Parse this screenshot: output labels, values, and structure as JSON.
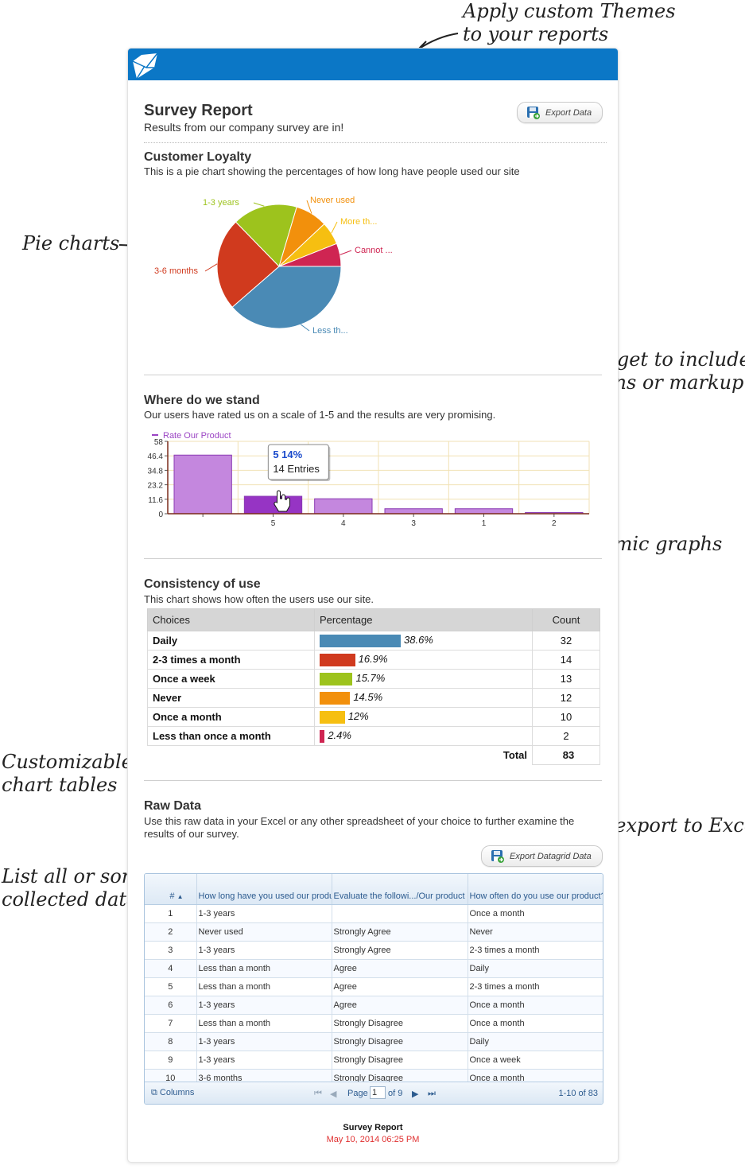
{
  "annotations": {
    "themes": [
      "Apply custom Themes",
      "to your reports"
    ],
    "pie": "Pie charts",
    "text_widget": [
      "Add a text widget to include",
      "any descriptions or markup"
    ],
    "graphs": "Dynamic graphs",
    "tables": [
      "Customizable",
      "chart tables"
    ],
    "export": "Allow export to Excel",
    "list": [
      "List all or some",
      "collected data"
    ]
  },
  "report": {
    "title": "Survey Report",
    "subtitle": "Results from our company survey are in!",
    "export_label": "Export Data"
  },
  "loyalty": {
    "heading": "Customer Loyalty",
    "description": "This is a pie chart showing the percentages of how long have people used our site",
    "chart_data": {
      "type": "pie",
      "slices": [
        {
          "label": "Less th...",
          "value": 38.6,
          "color": "#4a8ab5"
        },
        {
          "label": "3-6 months",
          "value": 24.1,
          "color": "#d03a1e"
        },
        {
          "label": "1-3 years",
          "value": 16.9,
          "color": "#9dc31d"
        },
        {
          "label": "Never used",
          "value": 8.4,
          "color": "#f2900c"
        },
        {
          "label": "More th...",
          "value": 6.0,
          "color": "#f6bf11"
        },
        {
          "label": "Cannot ...",
          "value": 6.0,
          "color": "#cf2552"
        }
      ]
    }
  },
  "stand": {
    "heading": "Where do we stand",
    "description": "Our users have rated us on a scale of 1-5 and the results are very promising.",
    "chart_data": {
      "type": "bar",
      "legend": "Rate Our Product",
      "categories": [
        "",
        "5",
        "4",
        "3",
        "1",
        "2"
      ],
      "values": [
        47,
        14,
        12,
        4,
        4,
        1
      ],
      "yticks": [
        "58",
        "46.4",
        "34.8",
        "23.2",
        "11.6",
        "0"
      ],
      "ylim": [
        0,
        58
      ],
      "tooltip": {
        "title": "5 14%",
        "body": "14 Entries"
      }
    }
  },
  "consistency": {
    "heading": "Consistency of use",
    "description": "This chart shows how often the users use our site.",
    "headers": [
      "Choices",
      "Percentage",
      "Count"
    ],
    "rows": [
      {
        "choice": "Daily",
        "pct": "38.6%",
        "value": 38.6,
        "count": "32",
        "color": "#4a8ab5"
      },
      {
        "choice": "2-3 times a month",
        "pct": "16.9%",
        "value": 16.9,
        "count": "14",
        "color": "#d03a1e"
      },
      {
        "choice": "Once a week",
        "pct": "15.7%",
        "value": 15.7,
        "count": "13",
        "color": "#9dc31d"
      },
      {
        "choice": "Never",
        "pct": "14.5%",
        "value": 14.5,
        "count": "12",
        "color": "#f2900c"
      },
      {
        "choice": "Once a month",
        "pct": "12%",
        "value": 12.0,
        "count": "10",
        "color": "#f6bf11"
      },
      {
        "choice": "Less than once a month",
        "pct": "2.4%",
        "value": 2.4,
        "count": "2",
        "color": "#cf2552"
      }
    ],
    "total_label": "Total",
    "total_value": "83"
  },
  "raw": {
    "heading": "Raw Data",
    "description": "Use this raw data in your Excel or any other spreadsheet of your choice to further examine the results of our survey.",
    "export_label": "Export Datagrid Data",
    "columns": [
      "#",
      "How long have you used our produ",
      "Evaluate the followi.../Our product",
      "How often do you use our product?"
    ],
    "rows": [
      [
        "1",
        "1-3 years",
        "",
        "Once a month"
      ],
      [
        "2",
        "Never used",
        "Strongly Agree",
        "Never"
      ],
      [
        "3",
        "1-3 years",
        "Strongly Agree",
        "2-3 times a month"
      ],
      [
        "4",
        "Less than a month",
        "Agree",
        "Daily"
      ],
      [
        "5",
        "Less than a month",
        "Agree",
        "2-3 times a month"
      ],
      [
        "6",
        "1-3 years",
        "Agree",
        "Once a month"
      ],
      [
        "7",
        "Less than a month",
        "Strongly Disagree",
        "Once a month"
      ],
      [
        "8",
        "1-3 years",
        "Strongly Disagree",
        "Daily"
      ],
      [
        "9",
        "1-3 years",
        "Strongly Disagree",
        "Once a week"
      ],
      [
        "10",
        "3-6 months",
        "Strongly Disagree",
        "Once a month"
      ]
    ],
    "footer": {
      "columns_label": "Columns",
      "page_label": "Page",
      "page_value": "1",
      "of_label": "of 9",
      "range": "1-10 of 83"
    }
  },
  "footer": {
    "title": "Survey Report",
    "date": "May 10, 2014 06:25 PM"
  }
}
